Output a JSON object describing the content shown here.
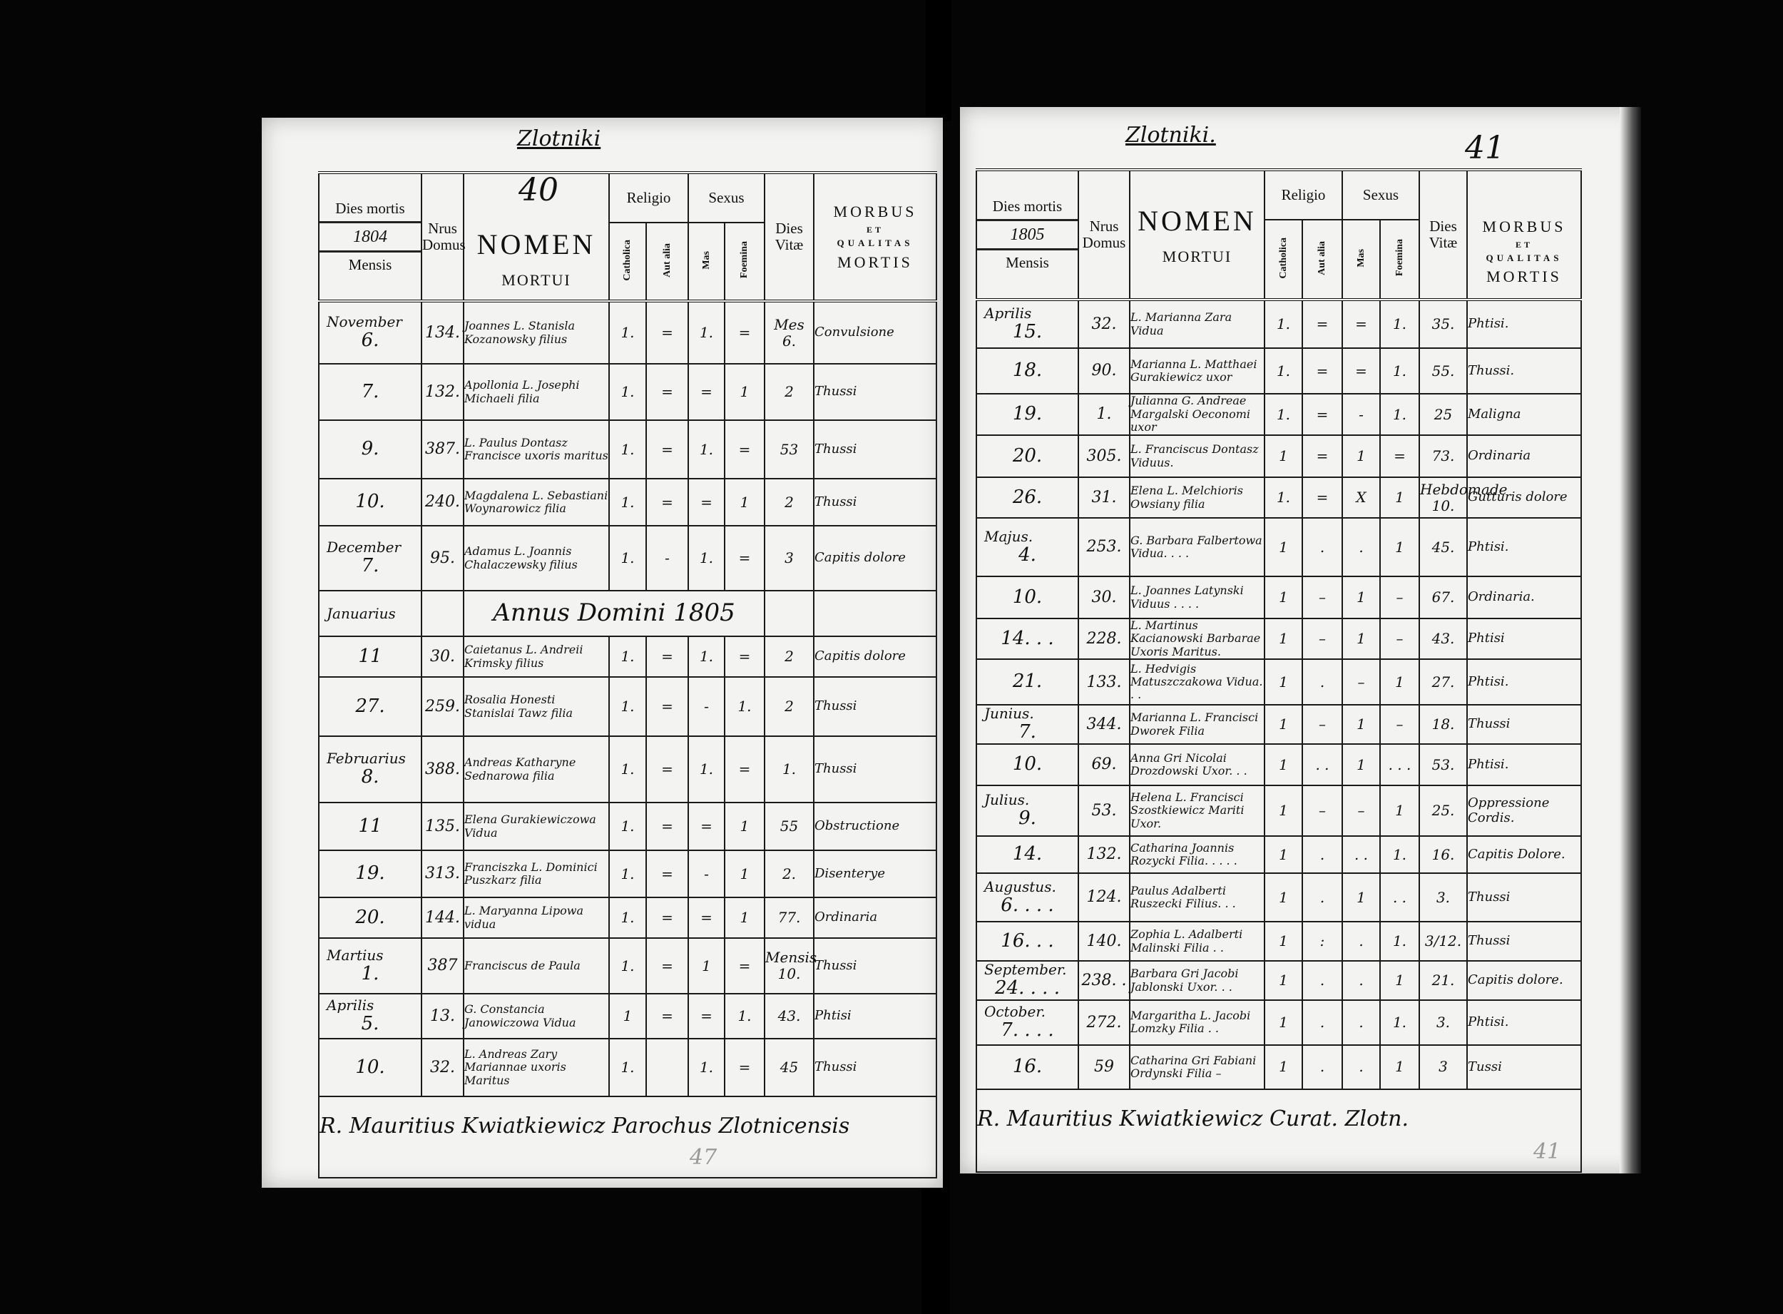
{
  "left_page": {
    "place": "Zlotniki",
    "page_number": "40",
    "year": "1804",
    "stamp": "47",
    "header": {
      "dies_mortis": "Dies mortis",
      "mensis": "Mensis",
      "nrus_domus": "Nrus Domus",
      "nomen": "NOMEN",
      "mortui": "MORTUI",
      "religio": "Religio",
      "catholica": "Catholica",
      "aut_alia": "Aut alia",
      "sexus": "Sexus",
      "mas": "Mas",
      "foemina": "Foemina",
      "dies_vitae": "Dies Vitæ",
      "morbus": "MORBUS",
      "et": "ET",
      "qualitas": "QUALITAS",
      "mortis": "MORTIS"
    },
    "rows": [
      {
        "month": "November",
        "day": "6.",
        "domus": "134.",
        "name": "Joannes L. Stanisla Kozanowsky filius",
        "catholica": "1.",
        "aut_alia": "=",
        "mas": "1.",
        "foemina": "=",
        "dies_vitae": "Mes 6.",
        "morbus": "Convulsione"
      },
      {
        "month": "",
        "day": "7.",
        "domus": "132.",
        "name": "Apollonia L. Josephi Michaeli filia",
        "catholica": "1.",
        "aut_alia": "=",
        "mas": "=",
        "foemina": "1",
        "dies_vitae": "2",
        "morbus": "Thussi"
      },
      {
        "month": "",
        "day": "9.",
        "domus": "387.",
        "name": "L. Paulus Dontasz Francisce uxoris maritus",
        "catholica": "1.",
        "aut_alia": "=",
        "mas": "1.",
        "foemina": "=",
        "dies_vitae": "53",
        "morbus": "Thussi"
      },
      {
        "month": "",
        "day": "10.",
        "domus": "240.",
        "name": "Magdalena L. Sebastiani Woynarowicz filia",
        "catholica": "1.",
        "aut_alia": "=",
        "mas": "=",
        "foemina": "1",
        "dies_vitae": "2",
        "morbus": "Thussi"
      },
      {
        "month": "December",
        "day": "7.",
        "domus": "95.",
        "name": "Adamus L. Joannis Chalaczewsky filius",
        "catholica": "1.",
        "aut_alia": "-",
        "mas": "1.",
        "foemina": "=",
        "dies_vitae": "3",
        "morbus": "Capitis dolore"
      },
      {
        "banner": "Annus Domini 1805",
        "month": "Januarius"
      },
      {
        "month": "",
        "day": "11",
        "domus": "30.",
        "name": "Caietanus L. Andreii Krimsky filius",
        "catholica": "1.",
        "aut_alia": "=",
        "mas": "1.",
        "foemina": "=",
        "dies_vitae": "2",
        "morbus": "Capitis dolore"
      },
      {
        "month": "",
        "day": "27.",
        "domus": "259.",
        "name": "Rosalia Honesti Stanislai Tawz filia",
        "catholica": "1.",
        "aut_alia": "=",
        "mas": "-",
        "foemina": "1.",
        "dies_vitae": "2",
        "morbus": "Thussi"
      },
      {
        "month": "Februarius",
        "day": "8.",
        "domus": "388.",
        "name": "Andreas Katharyne Sednarowa filia",
        "catholica": "1.",
        "aut_alia": "=",
        "mas": "1.",
        "foemina": "=",
        "dies_vitae": "1.",
        "morbus": "Thussi"
      },
      {
        "month": "",
        "day": "11",
        "domus": "135.",
        "name": "Elena Gurakiewiczowa Vidua",
        "catholica": "1.",
        "aut_alia": "=",
        "mas": "=",
        "foemina": "1",
        "dies_vitae": "55",
        "morbus": "Obstructione"
      },
      {
        "month": "",
        "day": "19.",
        "domus": "313.",
        "name": "Franciszka L. Dominici Puszkarz filia",
        "catholica": "1.",
        "aut_alia": "=",
        "mas": "-",
        "foemina": "1",
        "dies_vitae": "2.",
        "morbus": "Disenterye"
      },
      {
        "month": "",
        "day": "20.",
        "domus": "144.",
        "name": "L. Maryanna Lipowa vidua",
        "catholica": "1.",
        "aut_alia": "=",
        "mas": "=",
        "foemina": "1",
        "dies_vitae": "77.",
        "morbus": "Ordinaria"
      },
      {
        "month": "Martius",
        "day": "1.",
        "domus": "387",
        "name": "Franciscus de Paula",
        "catholica": "1.",
        "aut_alia": "=",
        "mas": "1",
        "foemina": "=",
        "dies_vitae": "Mensis 10.",
        "morbus": "Thussi"
      },
      {
        "month": "Aprilis",
        "day": "5.",
        "domus": "13.",
        "name": "G. Constancia Janowiczowa Vidua",
        "catholica": "1",
        "aut_alia": "=",
        "mas": "=",
        "foemina": "1.",
        "dies_vitae": "43.",
        "morbus": "Phtisi"
      },
      {
        "month": "",
        "day": "10.",
        "domus": "32.",
        "name": "L. Andreas Zary Mariannae uxoris Maritus",
        "catholica": "1.",
        "aut_alia": "",
        "mas": "1.",
        "foemina": "=",
        "dies_vitae": "45",
        "morbus": "Thussi"
      }
    ],
    "signature": "R. Mauritius Kwiatkiewicz Parochus Zlotnicensis"
  },
  "right_page": {
    "place": "Zlotniki.",
    "page_number": "41",
    "year": "1805",
    "stamp": "41",
    "header": {
      "dies_mortis": "Dies mortis",
      "mensis": "Mensis",
      "nrus_domus": "Nrus Domus",
      "nomen": "NOMEN",
      "mortui": "MORTUI",
      "religio": "Religio",
      "catholica": "Catholica",
      "aut_alia": "Aut alia",
      "sexus": "Sexus",
      "mas": "Mas",
      "foemina": "Foemina",
      "dies_vitae": "Dies Vitæ",
      "morbus": "MORBUS",
      "et": "ET",
      "qualitas": "QUALITAS",
      "mortis": "MORTIS"
    },
    "rows": [
      {
        "month": "Aprilis",
        "day": "15.",
        "domus": "32.",
        "name": "L. Marianna Zara Vidua",
        "catholica": "1.",
        "aut_alia": "=",
        "mas": "=",
        "foemina": "1.",
        "dies_vitae": "35.",
        "morbus": "Phtisi."
      },
      {
        "month": "",
        "day": "18.",
        "domus": "90.",
        "name": "Marianna L. Matthaei Gurakiewicz uxor",
        "catholica": "1.",
        "aut_alia": "=",
        "mas": "=",
        "foemina": "1.",
        "dies_vitae": "55.",
        "morbus": "Thussi."
      },
      {
        "month": "",
        "day": "19.",
        "domus": "1.",
        "name": "Julianna G. Andreae Margalski Oeconomi uxor",
        "catholica": "1.",
        "aut_alia": "=",
        "mas": "-",
        "foemina": "1.",
        "dies_vitae": "25",
        "morbus": "Maligna"
      },
      {
        "month": "",
        "day": "20.",
        "domus": "305.",
        "name": "L. Franciscus Dontasz Viduus.",
        "catholica": "1",
        "aut_alia": "=",
        "mas": "1",
        "foemina": "=",
        "dies_vitae": "73.",
        "morbus": "Ordinaria"
      },
      {
        "month": "",
        "day": "26.",
        "domus": "31.",
        "name": "Elena L. Melchioris Owsiany filia",
        "catholica": "1.",
        "aut_alia": "=",
        "mas": "X",
        "foemina": "1",
        "dies_vitae": "Hebdomade 10.",
        "morbus": "Gutturis dolore"
      },
      {
        "month": "Majus.",
        "day": "4.",
        "domus": "253.",
        "name": "G. Barbara Falbertowa Vidua. . . .",
        "catholica": "1",
        "aut_alia": ".",
        "mas": ".",
        "foemina": "1",
        "dies_vitae": "45.",
        "morbus": "Phtisi."
      },
      {
        "month": "",
        "day": "10.",
        "domus": "30.",
        "name": "L. Joannes Latynski Viduus . . . .",
        "catholica": "1",
        "aut_alia": "–",
        "mas": "1",
        "foemina": "–",
        "dies_vitae": "67.",
        "morbus": "Ordinaria."
      },
      {
        "month": "",
        "day": "14. . .",
        "domus": "228.",
        "name": "L. Martinus Kacianowski Barbarae Uxoris Maritus.",
        "catholica": "1",
        "aut_alia": "–",
        "mas": "1",
        "foemina": "–",
        "dies_vitae": "43.",
        "morbus": "Phtisi"
      },
      {
        "month": "",
        "day": "21.",
        "domus": "133.",
        "name": "L. Hedvigis Matuszczakowa Vidua. . .",
        "catholica": "1",
        "aut_alia": ".",
        "mas": "–",
        "foemina": "1",
        "dies_vitae": "27.",
        "morbus": "Phtisi."
      },
      {
        "month": "Junius.",
        "day": "7.",
        "domus": "344.",
        "name": "Marianna L. Francisci Dworek Filia",
        "catholica": "1",
        "aut_alia": "–",
        "mas": "1",
        "foemina": "–",
        "dies_vitae": "18.",
        "morbus": "Thussi"
      },
      {
        "month": "",
        "day": "10.",
        "domus": "69.",
        "name": "Anna Gri Nicolai Drozdowski Uxor. . .",
        "catholica": "1",
        "aut_alia": ". .",
        "mas": "1",
        "foemina": ". . .",
        "dies_vitae": "53.",
        "morbus": "Phtisi."
      },
      {
        "month": "Julius.",
        "day": "9.",
        "domus": "53.",
        "name": "Helena L. Francisci Szostkiewicz Mariti Uxor.",
        "catholica": "1",
        "aut_alia": "–",
        "mas": "–",
        "foemina": "1",
        "dies_vitae": "25.",
        "morbus": "Oppressione Cordis."
      },
      {
        "month": "",
        "day": "14.",
        "domus": "132.",
        "name": "Catharina Joannis Rozycki Filia. . . . .",
        "catholica": "1",
        "aut_alia": ".",
        "mas": ". .",
        "foemina": "1.",
        "dies_vitae": "16.",
        "morbus": "Capitis Dolore."
      },
      {
        "month": "Augustus.",
        "day": "6. . . .",
        "domus": "124.",
        "name": "Paulus Adalberti Ruszecki Filius. . .",
        "catholica": "1",
        "aut_alia": ".",
        "mas": "1",
        "foemina": ". .",
        "dies_vitae": "3.",
        "morbus": "Thussi"
      },
      {
        "month": "",
        "day": "16. . .",
        "domus": "140.",
        "name": "Zophia L. Adalberti Malinski Filia . .",
        "catholica": "1",
        "aut_alia": ":",
        "mas": ".",
        "foemina": "1.",
        "dies_vitae": "3/12.",
        "morbus": "Thussi"
      },
      {
        "month": "September.",
        "day": "24. . . .",
        "domus": "238. .",
        "name": "Barbara Gri Jacobi Jablonski Uxor. . .",
        "catholica": "1",
        "aut_alia": ".",
        "mas": ".",
        "foemina": "1",
        "dies_vitae": "21.",
        "morbus": "Capitis dolore."
      },
      {
        "month": "October.",
        "day": "7. . . .",
        "domus": "272.",
        "name": "Margaritha L. Jacobi Lomzky Filia . .",
        "catholica": "1",
        "aut_alia": ".",
        "mas": ".",
        "foemina": "1.",
        "dies_vitae": "3.",
        "morbus": "Phtisi."
      },
      {
        "month": "",
        "day": "16.",
        "domus": "59",
        "name": "Catharina Gri Fabiani Ordynski Filia –",
        "catholica": "1",
        "aut_alia": ".",
        "mas": ".",
        "foemina": "1",
        "dies_vitae": "3",
        "morbus": "Tussi"
      }
    ],
    "signature": "R. Mauritius Kwiatkiewicz Curat. Zlotn."
  }
}
